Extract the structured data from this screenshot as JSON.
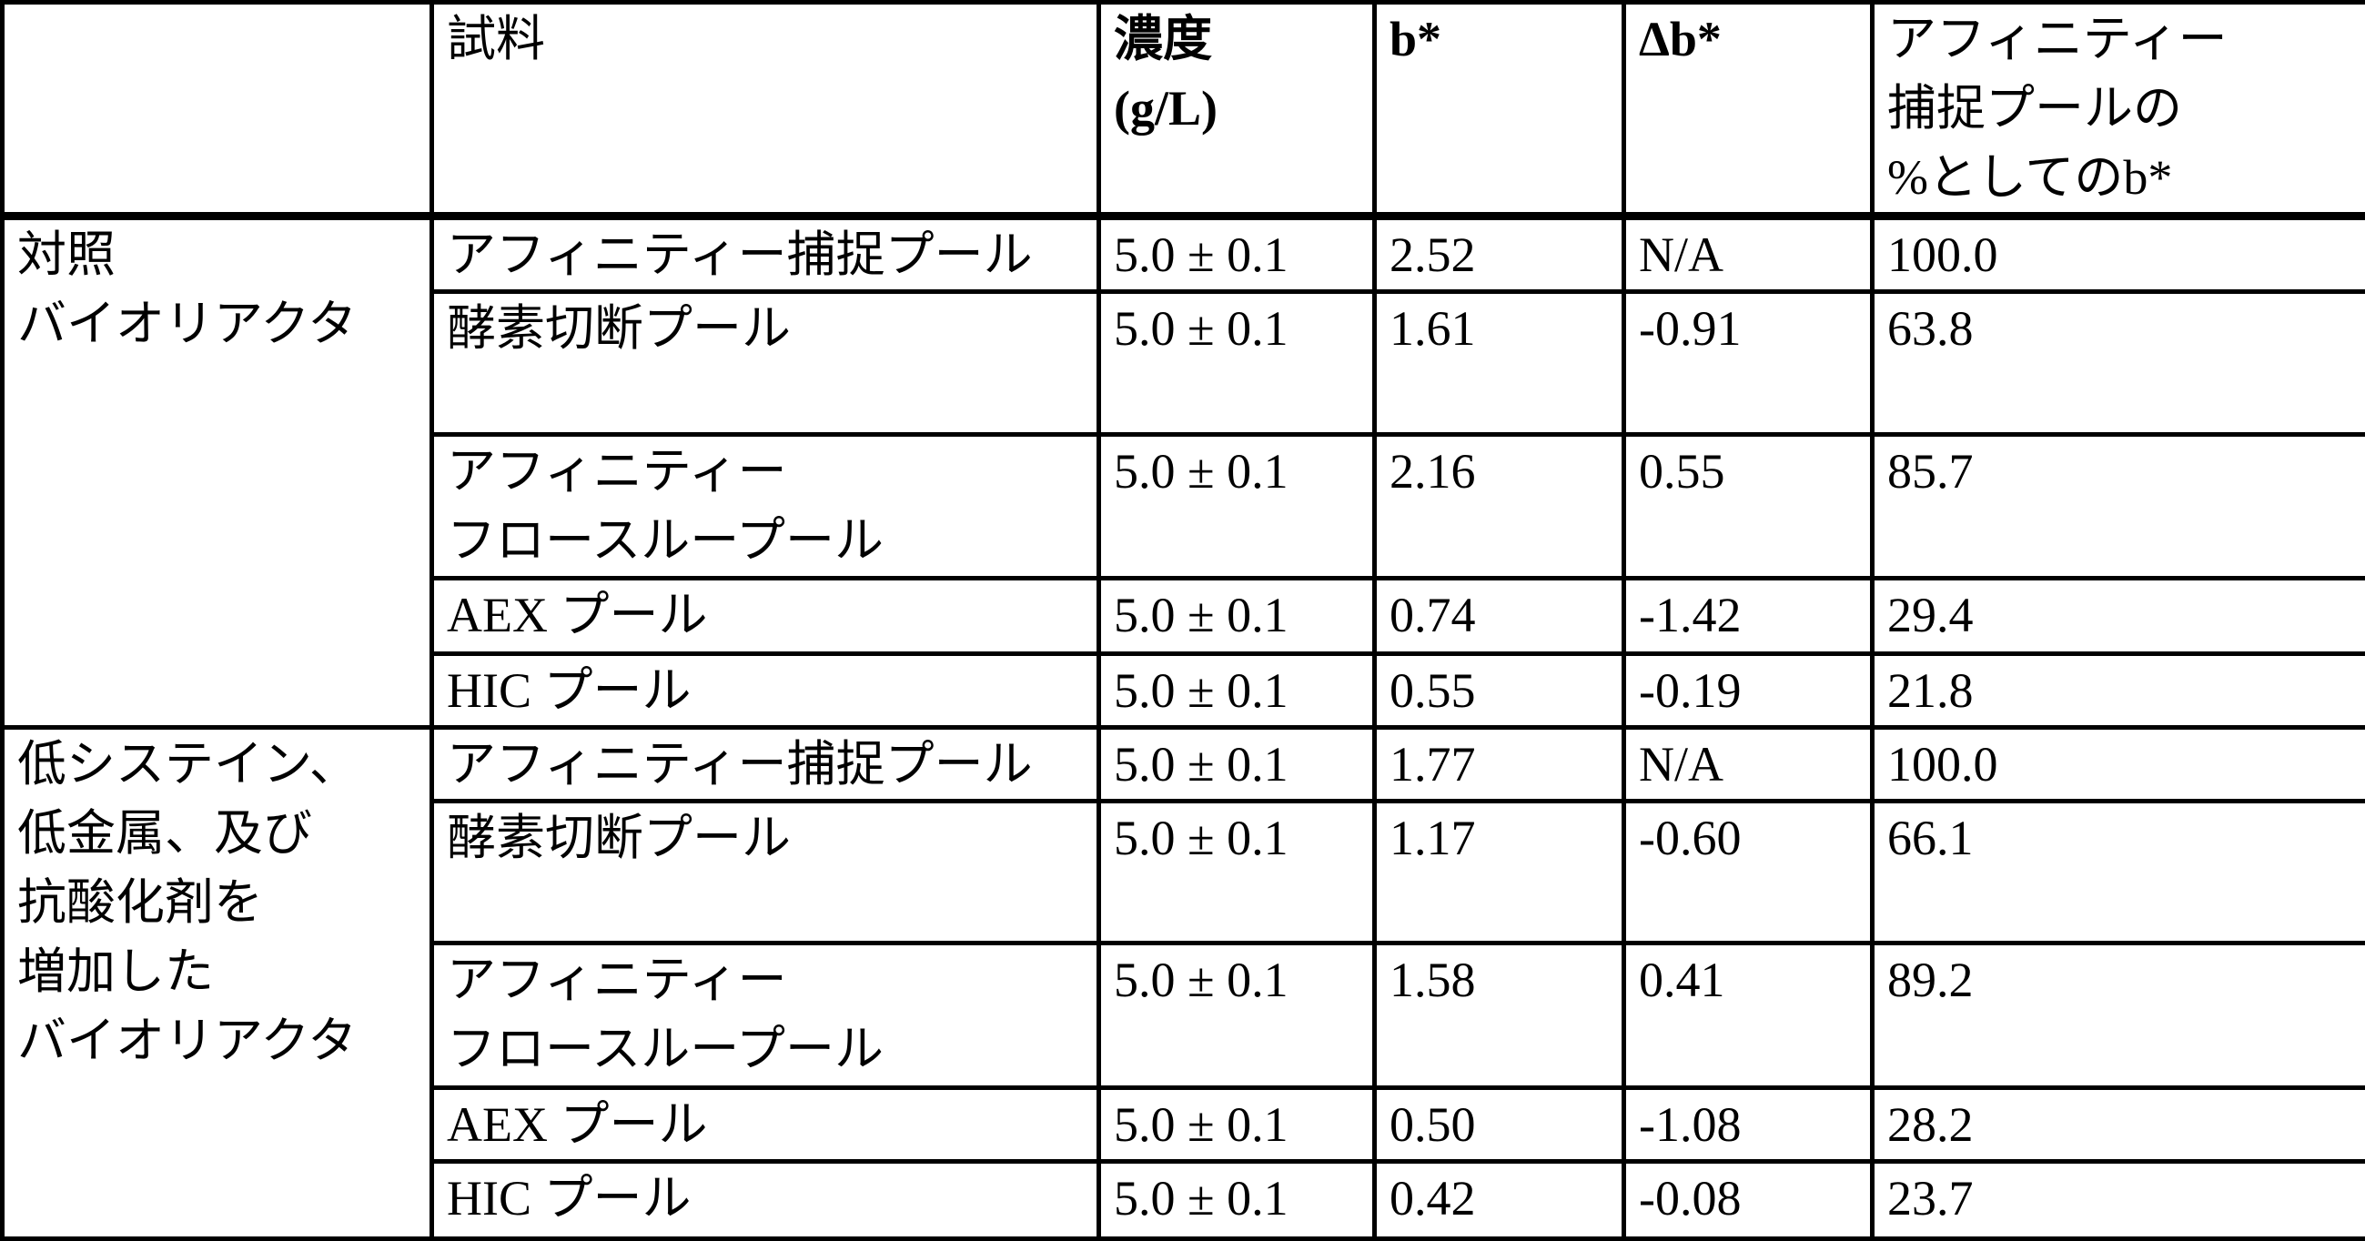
{
  "header": {
    "group": "",
    "sample": "試料",
    "concentration": "濃度\n(g/L)",
    "b_star": "b*",
    "delta_b_star": "Δb*",
    "percent_b_star": "アフィニティー\n捕捉プールの\n%としてのb*"
  },
  "groups": [
    {
      "label": "対照\nバイオリアクタ",
      "rows": [
        {
          "sample": "アフィニティー捕捉プール",
          "conc": "5.0 ± 0.1",
          "b": "2.52",
          "db": "N/A",
          "pct": "100.0"
        },
        {
          "sample": "酵素切断プール",
          "conc": "5.0 ± 0.1",
          "b": "1.61",
          "db": "-0.91",
          "pct": "63.8"
        },
        {
          "sample": "アフィニティー\nフロースループール",
          "conc": "5.0 ± 0.1",
          "b": "2.16",
          "db": "0.55",
          "pct": "85.7"
        },
        {
          "sample": "AEX プール",
          "conc": "5.0 ± 0.1",
          "b": "0.74",
          "db": "-1.42",
          "pct": "29.4"
        },
        {
          "sample": "HIC プール",
          "conc": "5.0 ± 0.1",
          "b": "0.55",
          "db": "-0.19",
          "pct": "21.8"
        }
      ]
    },
    {
      "label": "低システイン、\n低金属、及び\n抗酸化剤を\n増加した\nバイオリアクタ",
      "rows": [
        {
          "sample": "アフィニティー捕捉プール",
          "conc": "5.0 ± 0.1",
          "b": "1.77",
          "db": "N/A",
          "pct": "100.0"
        },
        {
          "sample": "酵素切断プール",
          "conc": "5.0 ± 0.1",
          "b": "1.17",
          "db": "-0.60",
          "pct": "66.1"
        },
        {
          "sample": "アフィニティー\nフロースループール",
          "conc": "5.0 ± 0.1",
          "b": "1.58",
          "db": "0.41",
          "pct": "89.2"
        },
        {
          "sample": "AEX プール",
          "conc": "5.0 ± 0.1",
          "b": "0.50",
          "db": "-1.08",
          "pct": "28.2"
        },
        {
          "sample": "HIC プール",
          "conc": "5.0 ± 0.1",
          "b": "0.42",
          "db": "-0.08",
          "pct": "23.7"
        }
      ]
    }
  ]
}
